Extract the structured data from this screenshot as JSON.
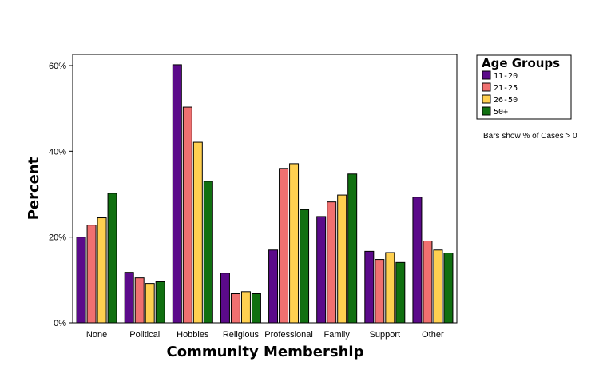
{
  "chart_data": {
    "type": "bar",
    "xlabel": "Community Membership",
    "ylabel": "Percent",
    "ylim": [
      0,
      60
    ],
    "yticks": [
      "0%",
      "20%",
      "40%",
      "60%"
    ],
    "ytick_values": [
      0,
      20,
      40,
      60
    ],
    "categories": [
      "None",
      "Political",
      "Hobbies",
      "Religious",
      "Professional",
      "Family",
      "Support",
      "Other"
    ],
    "legend": {
      "title": "Age Groups",
      "placement": "right"
    },
    "note": "Bars show % of Cases > 0",
    "grid": false,
    "series": [
      {
        "name": "11-20",
        "color": "#5b0a8a",
        "values": [
          20,
          11.8,
          60.2,
          11.6,
          17,
          24.8,
          16.7,
          29.3
        ]
      },
      {
        "name": "21-25",
        "color": "#f07070",
        "values": [
          22.8,
          10.5,
          50.3,
          6.8,
          36,
          28.2,
          14.8,
          19.1
        ]
      },
      {
        "name": "26-50",
        "color": "#ffd050",
        "values": [
          24.5,
          9.2,
          42.1,
          7.3,
          37.1,
          29.8,
          16.4,
          17
        ]
      },
      {
        "name": "50+",
        "color": "#107010",
        "values": [
          30.2,
          9.6,
          33,
          6.8,
          26.4,
          34.7,
          14.1,
          16.3
        ]
      }
    ]
  }
}
